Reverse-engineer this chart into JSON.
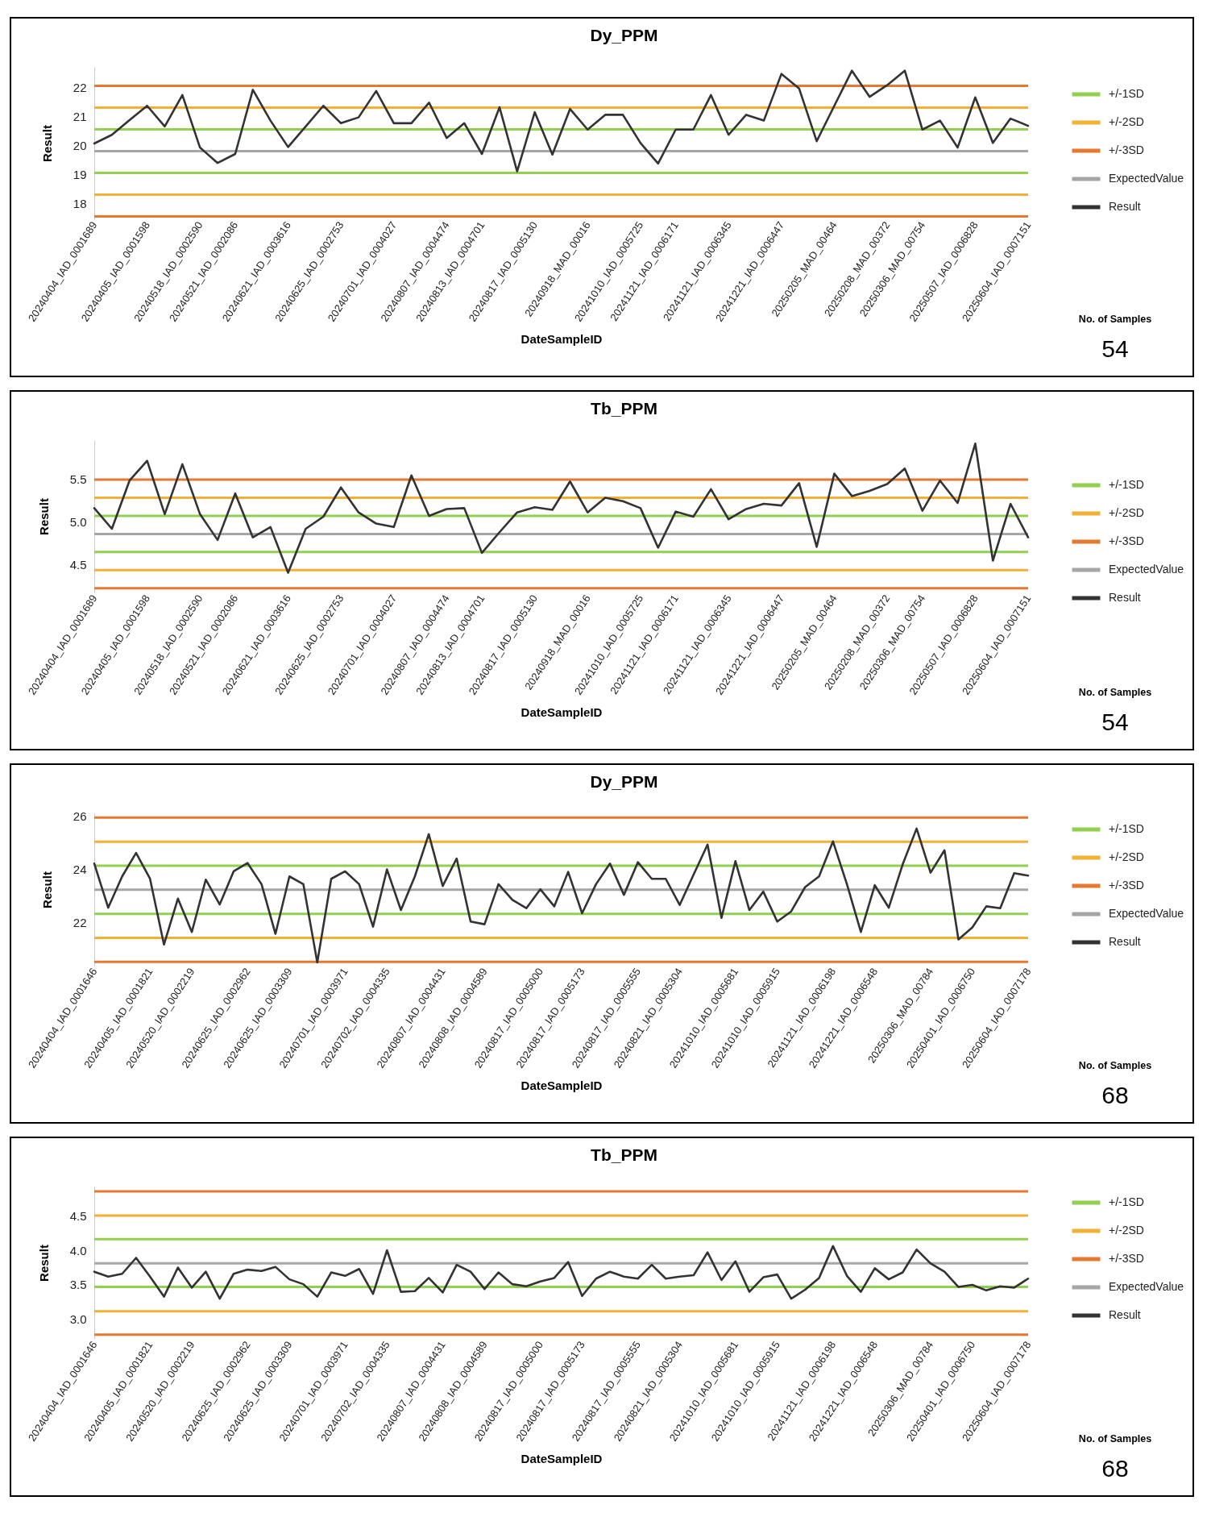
{
  "chart_data": [
    {
      "type": "line",
      "title": "Dy_PPM",
      "xlabel": "DateSampleID",
      "ylabel": "Result",
      "legend": "right",
      "categories": [
        "20240404_IAD_0001689",
        null,
        null,
        "20240405_IAD_0001598",
        null,
        null,
        "20240518_IAD_0002590",
        null,
        "20240521_IAD_0002086",
        null,
        null,
        "20240621_IAD_0003616",
        null,
        null,
        "20240625_IAD_0002753",
        null,
        null,
        "20240701_IAD_0004027",
        null,
        null,
        "20240807_IAD_0004474",
        null,
        "20240813_IAD_0004701",
        null,
        null,
        "20240817_IAD_0005130",
        null,
        null,
        "20240918_MAD_00016",
        null,
        null,
        "20241010_IAD_0005725",
        null,
        "20241121_IAD_0006171",
        null,
        null,
        "20241121_IAD_0006345",
        null,
        null,
        "20241221_IAD_0006447",
        null,
        null,
        "20250205_MAD_00464",
        null,
        null,
        "20250208_MAD_00372",
        null,
        "20250306_MAD_00754",
        null,
        null,
        "20250507_IAD_0006828",
        null,
        null,
        "20250604_IAD_0007151"
      ],
      "series": [
        {
          "name": "Result",
          "color": "#333333",
          "values": [
            20.06,
            20.36,
            20.87,
            21.36,
            20.65,
            21.73,
            19.92,
            19.39,
            19.7,
            21.91,
            20.85,
            19.94,
            20.65,
            21.36,
            20.76,
            20.96,
            21.87,
            20.76,
            20.76,
            21.47,
            20.25,
            20.76,
            19.7,
            21.31,
            19.1,
            21.14,
            19.68,
            21.25,
            20.54,
            21.05,
            21.05,
            20.08,
            19.37,
            20.54,
            20.54,
            21.73,
            20.36,
            21.05,
            20.85,
            22.46,
            21.96,
            20.14,
            21.36,
            22.57,
            21.67,
            22.07,
            22.57,
            20.54,
            20.85,
            19.92,
            21.65,
            20.08,
            20.92,
            20.67
          ]
        }
      ],
      "ref_lines": [
        {
          "axis": "y",
          "value": 20.55,
          "label": "+/-1SD",
          "color": "#92d050"
        },
        {
          "axis": "y",
          "value": 19.05,
          "color": "#92d050"
        },
        {
          "axis": "y",
          "value": 21.3,
          "label": "+/-2SD",
          "color": "#f2b134"
        },
        {
          "axis": "y",
          "value": 18.3,
          "color": "#f2b134"
        },
        {
          "axis": "y",
          "value": 22.05,
          "label": "+/-3SD",
          "color": "#e6782f"
        },
        {
          "axis": "y",
          "value": 17.55,
          "color": "#e6782f"
        },
        {
          "axis": "y",
          "value": 19.8,
          "label": "ExpectedValue",
          "color": "#a6a6a6"
        }
      ],
      "ylim": [
        17.45,
        22.7
      ],
      "yticks": [
        18,
        19,
        20,
        21,
        22
      ],
      "annotations": [
        "No. of Samples",
        "54"
      ]
    },
    {
      "type": "line",
      "title": "Tb_PPM",
      "xlabel": "DateSampleID",
      "ylabel": "Result",
      "legend": "right",
      "categories": [
        "20240404_IAD_0001689",
        null,
        null,
        "20240405_IAD_0001598",
        null,
        null,
        "20240518_IAD_0002590",
        null,
        "20240521_IAD_0002086",
        null,
        null,
        "20240621_IAD_0003616",
        null,
        null,
        "20240625_IAD_0002753",
        null,
        null,
        "20240701_IAD_0004027",
        null,
        null,
        "20240807_IAD_0004474",
        null,
        "20240813_IAD_0004701",
        null,
        null,
        "20240817_IAD_0005130",
        null,
        null,
        "20240918_MAD_00016",
        null,
        null,
        "20241010_IAD_0005725",
        null,
        "20241121_IAD_0006171",
        null,
        null,
        "20241121_IAD_0006345",
        null,
        null,
        "20241221_IAD_0006447",
        null,
        null,
        "20250205_MAD_00464",
        null,
        null,
        "20250208_MAD_00372",
        null,
        "20250306_MAD_00754",
        null,
        null,
        "20250507_IAD_0006828",
        null,
        null,
        "20250604_IAD_0007151"
      ],
      "series": [
        {
          "name": "Result",
          "color": "#333333",
          "values": [
            5.16,
            4.92,
            5.48,
            5.71,
            5.09,
            5.67,
            5.09,
            4.79,
            5.33,
            4.82,
            4.94,
            4.41,
            4.92,
            5.06,
            5.4,
            5.11,
            4.98,
            4.94,
            5.54,
            5.07,
            5.15,
            5.16,
            4.64,
            4.88,
            5.11,
            5.17,
            5.14,
            5.47,
            5.11,
            5.28,
            5.24,
            5.16,
            4.7,
            5.12,
            5.06,
            5.38,
            5.03,
            5.15,
            5.21,
            5.19,
            5.45,
            4.71,
            5.56,
            5.3,
            5.36,
            5.44,
            5.62,
            5.13,
            5.48,
            5.22,
            5.91,
            4.55,
            5.21,
            4.82
          ]
        }
      ],
      "ref_lines": [
        {
          "axis": "y",
          "value": 5.07,
          "label": "+/-1SD",
          "color": "#92d050"
        },
        {
          "axis": "y",
          "value": 4.65,
          "color": "#92d050"
        },
        {
          "axis": "y",
          "value": 5.28,
          "label": "+/-2SD",
          "color": "#f2b134"
        },
        {
          "axis": "y",
          "value": 4.44,
          "color": "#f2b134"
        },
        {
          "axis": "y",
          "value": 5.49,
          "label": "+/-3SD",
          "color": "#e6782f"
        },
        {
          "axis": "y",
          "value": 4.23,
          "color": "#e6782f"
        },
        {
          "axis": "y",
          "value": 4.86,
          "label": "ExpectedValue",
          "color": "#a6a6a6"
        }
      ],
      "ylim": [
        4.18,
        5.95
      ],
      "yticks": [
        4.5,
        {
          "value": 5,
          "label": "5.0"
        },
        5.5
      ],
      "annotations": [
        "No. of Samples",
        "54"
      ]
    },
    {
      "type": "line",
      "title": "Dy_PPM",
      "xlabel": "DateSampleID",
      "ylabel": "Result",
      "legend": "right",
      "categories": [
        "20240404_IAD_0001646",
        null,
        null,
        null,
        "20240405_IAD_0001821",
        null,
        null,
        "20240520_IAD_0002219",
        null,
        null,
        null,
        "20240625_IAD_0002962",
        null,
        null,
        "20240625_IAD_0003309",
        null,
        null,
        null,
        "20240701_IAD_0003971",
        null,
        null,
        "20240702_IAD_0004335",
        null,
        null,
        null,
        "20240807_IAD_0004431",
        null,
        null,
        "20240808_IAD_0004589",
        null,
        null,
        null,
        "20240817_IAD_0005000",
        null,
        null,
        "20240817_IAD_0005173",
        null,
        null,
        null,
        "20240817_IAD_0005555",
        null,
        null,
        "20240821_IAD_0005304",
        null,
        null,
        null,
        "20241010_IAD_0005681",
        null,
        null,
        "20241010_IAD_0005915",
        null,
        null,
        null,
        "20241121_IAD_0006198",
        null,
        null,
        "20241221_IAD_0006548",
        null,
        null,
        null,
        "20250306_MAD_00784",
        null,
        null,
        "20250401_IAD_0006750",
        null,
        null,
        null,
        "20250604_IAD_0007178"
      ],
      "series": [
        {
          "name": "Result",
          "color": "#333333",
          "values": [
            24.22,
            22.57,
            23.74,
            24.62,
            23.65,
            21.19,
            22.91,
            21.66,
            23.62,
            22.69,
            23.93,
            24.24,
            23.45,
            21.59,
            23.74,
            23.45,
            20.52,
            23.65,
            23.93,
            23.45,
            21.86,
            24.0,
            22.48,
            23.74,
            25.32,
            23.38,
            24.41,
            22.05,
            21.95,
            23.45,
            22.86,
            22.55,
            23.26,
            22.62,
            23.91,
            22.36,
            23.45,
            24.22,
            23.05,
            24.27,
            23.65,
            23.65,
            22.67,
            23.81,
            24.93,
            22.19,
            24.31,
            22.48,
            23.17,
            22.05,
            22.43,
            23.34,
            23.74,
            25.05,
            23.45,
            21.66,
            23.41,
            22.57,
            24.19,
            25.53,
            23.88,
            24.72,
            21.38,
            21.83,
            22.62,
            22.55,
            23.86,
            23.77
          ]
        }
      ],
      "ref_lines": [
        {
          "axis": "y",
          "value": 24.14,
          "label": "+/-1SD",
          "color": "#92d050"
        },
        {
          "axis": "y",
          "value": 22.34,
          "color": "#92d050"
        },
        {
          "axis": "y",
          "value": 25.04,
          "label": "+/-2SD",
          "color": "#f2b134"
        },
        {
          "axis": "y",
          "value": 21.44,
          "color": "#f2b134"
        },
        {
          "axis": "y",
          "value": 25.94,
          "label": "+/-3SD",
          "color": "#e6782f"
        },
        {
          "axis": "y",
          "value": 20.54,
          "color": "#e6782f"
        },
        {
          "axis": "y",
          "value": 23.24,
          "label": "ExpectedValue",
          "color": "#a6a6a6"
        }
      ],
      "ylim": [
        20.4,
        26.1
      ],
      "yticks": [
        22,
        24,
        26
      ],
      "annotations": [
        "No. of Samples",
        "68"
      ]
    },
    {
      "type": "line",
      "title": "Tb_PPM",
      "xlabel": "DateSampleID",
      "ylabel": "Result",
      "legend": "right",
      "categories": [
        "20240404_IAD_0001646",
        null,
        null,
        null,
        "20240405_IAD_0001821",
        null,
        null,
        "20240520_IAD_0002219",
        null,
        null,
        null,
        "20240625_IAD_0002962",
        null,
        null,
        "20240625_IAD_0003309",
        null,
        null,
        null,
        "20240701_IAD_0003971",
        null,
        null,
        "20240702_IAD_0004335",
        null,
        null,
        null,
        "20240807_IAD_0004431",
        null,
        null,
        "20240808_IAD_0004589",
        null,
        null,
        null,
        "20240817_IAD_0005000",
        null,
        null,
        "20240817_IAD_0005173",
        null,
        null,
        null,
        "20240817_IAD_0005555",
        null,
        null,
        "20240821_IAD_0005304",
        null,
        null,
        null,
        "20241010_IAD_0005681",
        null,
        null,
        "20241010_IAD_0005915",
        null,
        null,
        null,
        "20241121_IAD_0006198",
        null,
        null,
        "20241221_IAD_0006548",
        null,
        null,
        null,
        "20250306_MAD_00784",
        null,
        null,
        "20250401_IAD_0006750",
        null,
        null,
        null,
        "20250604_IAD_0007178"
      ],
      "series": [
        {
          "name": "Result",
          "color": "#333333",
          "values": [
            3.69,
            3.62,
            3.66,
            3.89,
            3.62,
            3.33,
            3.75,
            3.46,
            3.69,
            3.3,
            3.66,
            3.72,
            3.7,
            3.76,
            3.58,
            3.51,
            3.33,
            3.68,
            3.63,
            3.73,
            3.37,
            4.0,
            3.4,
            3.41,
            3.6,
            3.39,
            3.79,
            3.69,
            3.44,
            3.68,
            3.51,
            3.48,
            3.55,
            3.6,
            3.83,
            3.34,
            3.59,
            3.69,
            3.62,
            3.59,
            3.79,
            3.59,
            3.62,
            3.64,
            3.97,
            3.57,
            3.84,
            3.4,
            3.61,
            3.65,
            3.3,
            3.43,
            3.6,
            4.06,
            3.63,
            3.4,
            3.74,
            3.58,
            3.68,
            4.01,
            3.81,
            3.69,
            3.47,
            3.5,
            3.42,
            3.48,
            3.46,
            3.59
          ]
        }
      ],
      "ref_lines": [
        {
          "axis": "y",
          "value": 4.16,
          "label": "+/-1SD",
          "color": "#92d050"
        },
        {
          "axis": "y",
          "value": 3.47,
          "color": "#92d050"
        },
        {
          "axis": "y",
          "value": 4.5,
          "label": "+/-2SD",
          "color": "#f2b134"
        },
        {
          "axis": "y",
          "value": 3.12,
          "color": "#f2b134"
        },
        {
          "axis": "y",
          "value": 4.85,
          "label": "+/-3SD",
          "color": "#e6782f"
        },
        {
          "axis": "y",
          "value": 2.78,
          "color": "#e6782f"
        },
        {
          "axis": "y",
          "value": 3.81,
          "label": "ExpectedValue",
          "color": "#a6a6a6"
        }
      ],
      "ylim": [
        2.72,
        4.92
      ],
      "yticks": [
        {
          "value": 3,
          "label": "3.0"
        },
        3.5,
        {
          "value": 4,
          "label": "4.0"
        },
        4.5
      ],
      "annotations": [
        "No. of Samples",
        "68"
      ]
    }
  ]
}
